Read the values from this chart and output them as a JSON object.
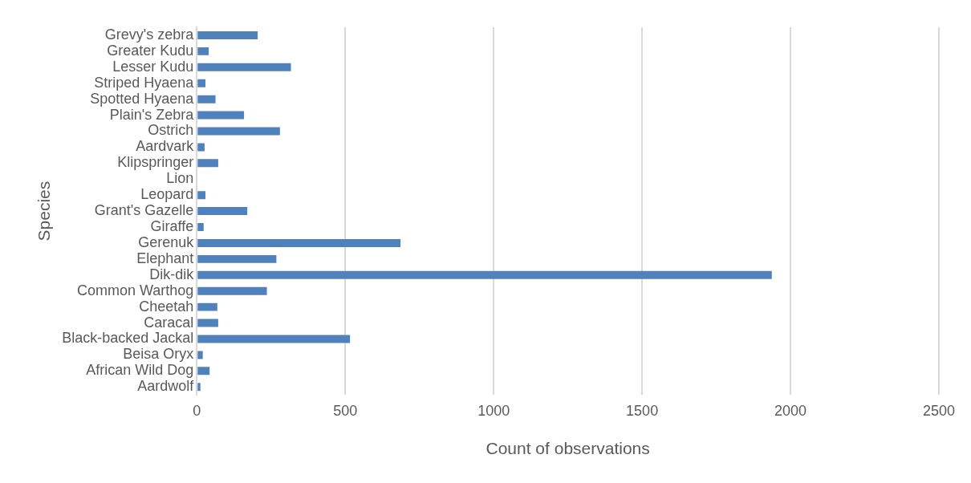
{
  "chart_data": {
    "type": "bar",
    "orientation": "horizontal",
    "xlabel": "Count of observations",
    "ylabel": "Species",
    "categories": [
      "Grevy's zebra",
      "Greater Kudu",
      "Lesser Kudu",
      "Striped Hyaena",
      "Spotted Hyaena",
      "Plain's Zebra",
      "Ostrich",
      "Aardvark",
      "Klipspringer",
      "Lion",
      "Leopard",
      "Grant's Gazelle",
      "Giraffe",
      "Gerenuk",
      "Elephant",
      "Dik-dik",
      "Common Warthog",
      "Cheetah",
      "Caracal",
      "Black-backed Jackal",
      "Beisa Oryx",
      "African Wild Dog",
      "Aardwolf"
    ],
    "values": [
      205,
      40,
      317,
      29,
      63,
      159,
      280,
      26,
      72,
      0,
      29,
      170,
      23,
      686,
      268,
      1937,
      236,
      69,
      72,
      516,
      20,
      43,
      12
    ],
    "color": "#4f81bd",
    "xlim": [
      0,
      2500
    ],
    "xticks": [
      0,
      500,
      1000,
      1500,
      2000,
      2500
    ],
    "grid": "x",
    "legend": false
  }
}
